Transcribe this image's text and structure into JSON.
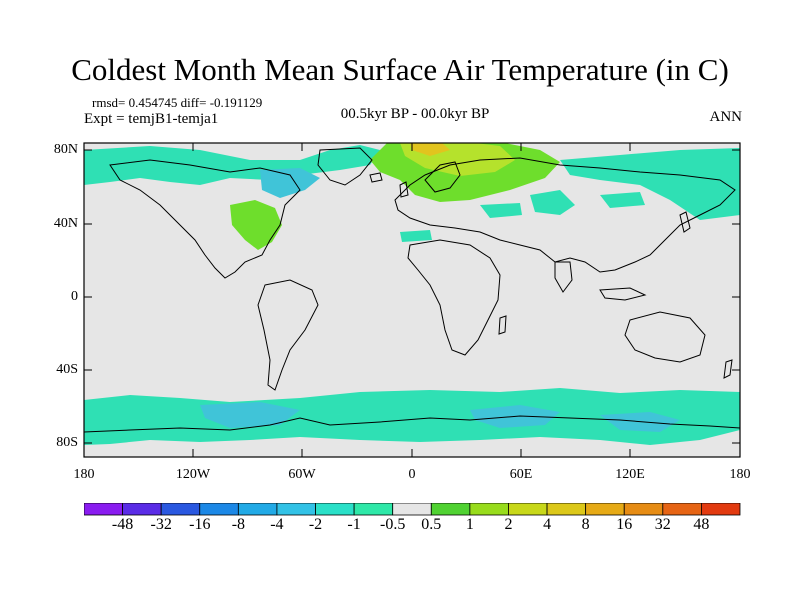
{
  "title": "Coldest Month Mean Surface Air Temperature (in C)",
  "stats": "rmsd= 0.454745 diff= -0.191129",
  "expt": "Expt = temjB1-temja1",
  "period": "00.5kyr BP - 00.0kyr BP",
  "season": "ANN",
  "colors": {
    "background_field": "#e6e6e6",
    "negative_small": "#2fe0b4",
    "negative_mid": "#40c4d8",
    "positive_small": "#6ede2c",
    "positive_mid": "#b5e22c",
    "positive_large": "#e2c41e",
    "coastline": "#000000"
  },
  "lat_labels": [
    "80N",
    "40N",
    "0",
    "40S",
    "80S"
  ],
  "lon_labels": [
    "180",
    "120W",
    "60W",
    "0",
    "60E",
    "120E",
    "180"
  ],
  "legend": {
    "colors": [
      "#8a1cf0",
      "#5a2ce6",
      "#2a58e0",
      "#1c88e6",
      "#22aae6",
      "#32c2e6",
      "#2ae0c8",
      "#2ee8a8",
      "#e6e6e6",
      "#50d232",
      "#98dc1c",
      "#c8d81a",
      "#dcc81a",
      "#e6aa16",
      "#e68c14",
      "#e66414",
      "#e23a10"
    ],
    "labels": [
      "-48",
      "-32",
      "-16",
      "-8",
      "-4",
      "-2",
      "-1",
      "-0.5",
      "0.5",
      "1",
      "2",
      "4",
      "8",
      "16",
      "32",
      "48"
    ]
  }
}
